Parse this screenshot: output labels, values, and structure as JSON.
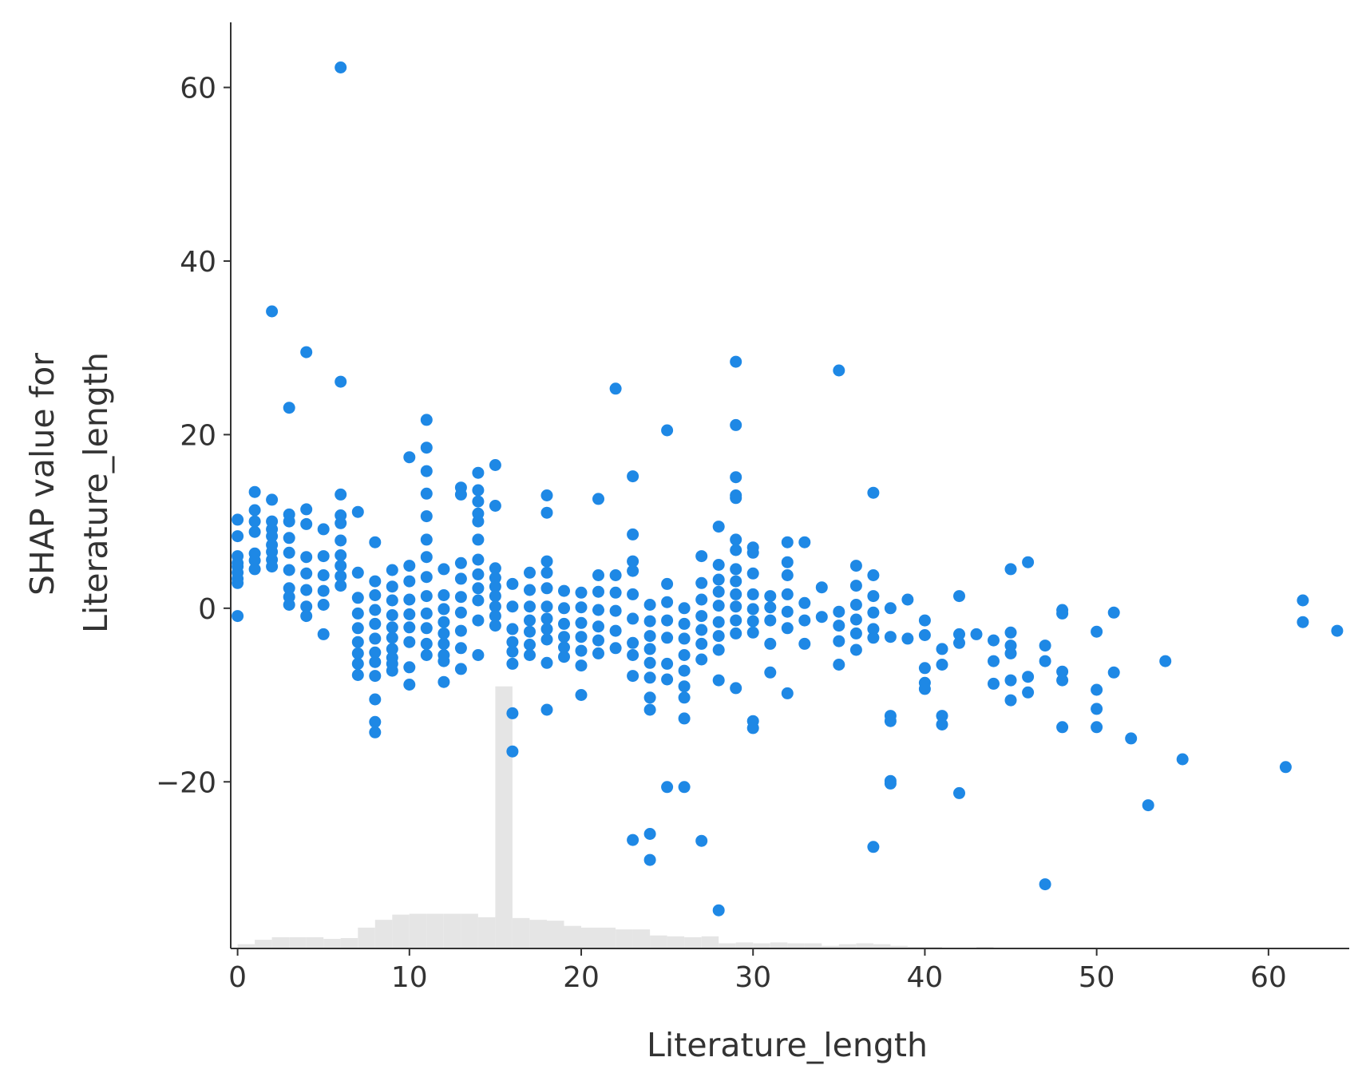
{
  "chart_data": {
    "type": "scatter",
    "xlabel": "Literature_length",
    "ylabel_lines": [
      "SHAP value for",
      "Literature_length"
    ],
    "xlim": [
      -0.4,
      64.7
    ],
    "ylim": [
      -39.2,
      67.5
    ],
    "x_ticks": [
      0,
      10,
      20,
      30,
      40,
      50,
      60
    ],
    "y_ticks": [
      -20,
      0,
      20,
      40,
      60
    ],
    "x_tick_labels": [
      "0",
      "10",
      "20",
      "30",
      "40",
      "50",
      "60"
    ],
    "y_tick_labels": [
      "−20",
      "0",
      "20",
      "40",
      "60"
    ],
    "grid": false,
    "point_color": "#1E88E5",
    "histogram_color": "#E5E5E5",
    "axis_color": "#333333",
    "histogram": {
      "bin_edges": [
        0,
        1,
        2,
        3,
        4,
        5,
        6,
        7,
        8,
        9,
        10,
        11,
        12,
        13,
        14,
        15,
        16,
        17,
        18,
        19,
        20,
        21,
        22,
        23,
        24,
        25,
        26,
        27,
        28,
        29,
        30,
        31,
        32,
        33,
        34,
        35,
        36,
        37,
        38,
        39,
        40,
        41,
        42,
        43,
        44,
        45,
        46,
        47,
        48,
        49,
        50
      ],
      "heights": [
        -38.7,
        -38.2,
        -37.9,
        -37.9,
        -37.9,
        -38.1,
        -38.0,
        -36.8,
        -35.9,
        -35.3,
        -35.2,
        -35.2,
        -35.2,
        -35.2,
        -35.6,
        -9.0,
        -35.7,
        -35.9,
        -36.0,
        -36.6,
        -36.8,
        -36.8,
        -37.0,
        -37.0,
        -37.7,
        -37.8,
        -37.9,
        -37.8,
        -38.6,
        -38.5,
        -38.6,
        -38.5,
        -38.6,
        -38.6,
        -38.9,
        -38.7,
        -38.6,
        -38.7,
        -38.9,
        -39.0,
        -39.0,
        -39.1,
        -39.1,
        -39.0,
        -39.1,
        -39.1,
        -39.1,
        -39.1,
        -39.1,
        -39.1
      ]
    },
    "points": {
      "x": [
        0,
        0,
        0,
        0,
        0,
        0,
        0,
        0,
        0,
        1,
        1,
        1,
        1,
        1,
        1,
        1,
        2,
        2,
        2,
        2,
        2,
        2,
        2,
        2,
        2,
        3,
        3,
        3,
        3,
        3,
        3,
        3,
        3,
        3,
        4,
        4,
        4,
        4,
        4,
        4,
        4,
        4,
        5,
        5,
        5,
        5,
        5,
        5,
        6,
        6,
        6,
        6,
        6,
        6,
        6,
        6,
        6,
        6,
        7,
        7,
        7,
        7,
        7,
        7,
        7,
        7,
        7,
        8,
        8,
        8,
        8,
        8,
        8,
        8,
        8,
        8,
        8,
        8,
        8,
        9,
        9,
        9,
        9,
        9,
        9,
        9,
        9,
        9,
        9,
        10,
        10,
        10,
        10,
        10,
        10,
        10,
        10,
        10,
        11,
        11,
        11,
        11,
        11,
        11,
        11,
        11,
        11,
        11,
        11,
        11,
        11,
        12,
        12,
        12,
        12,
        12,
        12,
        12,
        12,
        12,
        13,
        13,
        13,
        13,
        13,
        13,
        13,
        13,
        13,
        14,
        14,
        14,
        14,
        14,
        14,
        14,
        14,
        14,
        14,
        14,
        14,
        15,
        15,
        15,
        15,
        15,
        15,
        15,
        15,
        15,
        16,
        16,
        16,
        16,
        16,
        16,
        16,
        16,
        17,
        17,
        17,
        17,
        17,
        17,
        17,
        18,
        18,
        18,
        18,
        18,
        18,
        18,
        18,
        18,
        18,
        18,
        19,
        19,
        19,
        19,
        19,
        19,
        20,
        20,
        20,
        20,
        20,
        20,
        20,
        21,
        21,
        21,
        21,
        21,
        21,
        21,
        22,
        22,
        22,
        22,
        22,
        22,
        23,
        23,
        23,
        23,
        23,
        23,
        23,
        23,
        23,
        23,
        24,
        24,
        24,
        24,
        24,
        24,
        24,
        24,
        24,
        24,
        25,
        25,
        25,
        25,
        25,
        25,
        25,
        25,
        26,
        26,
        26,
        26,
        26,
        26,
        26,
        26,
        26,
        27,
        27,
        27,
        27,
        27,
        27,
        27,
        27,
        28,
        28,
        28,
        28,
        28,
        28,
        28,
        28,
        28,
        28,
        29,
        29,
        29,
        29,
        29,
        29,
        29,
        29,
        29,
        29,
        29,
        29,
        29,
        29,
        30,
        30,
        30,
        30,
        30,
        30,
        30,
        30,
        30,
        31,
        31,
        31,
        31,
        31,
        32,
        32,
        32,
        32,
        32,
        32,
        32,
        33,
        33,
        33,
        33,
        34,
        34,
        35,
        35,
        35,
        35,
        35,
        36,
        36,
        36,
        36,
        36,
        36,
        37,
        37,
        37,
        37,
        37,
        37,
        37,
        38,
        38,
        38,
        38,
        38,
        38,
        39,
        39,
        40,
        40,
        40,
        40,
        40,
        41,
        41,
        41,
        41,
        42,
        42,
        42,
        42,
        43,
        44,
        44,
        44,
        45,
        45,
        45,
        45,
        45,
        45,
        46,
        46,
        46,
        47,
        47,
        47,
        48,
        48,
        48,
        48,
        48,
        50,
        50,
        50,
        50,
        51,
        51,
        52,
        53,
        54,
        55,
        61,
        62,
        62,
        64
      ],
      "y": [
        10.2,
        8.3,
        6.0,
        5.2,
        4.8,
        4.1,
        3.4,
        2.9,
        -0.9,
        13.4,
        11.3,
        10.0,
        8.8,
        6.3,
        5.5,
        4.5,
        12.5,
        10.0,
        9.1,
        8.3,
        7.3,
        6.5,
        5.6,
        4.8,
        34.2,
        23.1,
        10.8,
        10.0,
        8.1,
        6.4,
        4.4,
        2.3,
        1.3,
        0.4,
        29.5,
        11.4,
        9.7,
        5.9,
        4.0,
        2.1,
        0.2,
        -0.9,
        9.1,
        6.0,
        3.8,
        2.0,
        0.4,
        -3.0,
        62.3,
        26.1,
        13.1,
        10.7,
        9.8,
        7.8,
        6.1,
        4.9,
        3.7,
        2.6,
        11.1,
        4.1,
        1.2,
        -0.6,
        -2.3,
        -3.9,
        -5.2,
        -6.4,
        -7.7,
        7.6,
        3.1,
        1.5,
        -0.2,
        -1.8,
        -3.5,
        -5.1,
        -6.2,
        -7.8,
        -10.5,
        -13.1,
        -14.3,
        4.4,
        2.5,
        0.9,
        -0.8,
        -2.2,
        -3.4,
        -4.7,
        -5.7,
        -6.4,
        -7.2,
        17.4,
        4.9,
        3.1,
        1.0,
        -0.7,
        -2.2,
        -3.9,
        -6.8,
        -8.8,
        21.7,
        18.5,
        15.8,
        13.2,
        10.6,
        7.9,
        5.9,
        3.6,
        1.4,
        -0.6,
        -2.3,
        -4.1,
        -5.4,
        4.5,
        1.5,
        -0.1,
        -1.6,
        -2.9,
        -4.1,
        -5.4,
        -6.1,
        -8.5,
        13.9,
        13.1,
        5.2,
        3.4,
        1.3,
        -0.5,
        -2.6,
        -4.6,
        -7.0,
        15.6,
        13.6,
        12.3,
        10.9,
        10.0,
        7.9,
        5.6,
        3.9,
        2.3,
        0.9,
        -1.4,
        -5.4,
        16.5,
        11.8,
        4.6,
        3.5,
        2.5,
        1.4,
        0.2,
        -0.9,
        -2.0,
        2.8,
        0.2,
        -2.4,
        -3.9,
        -5.0,
        -6.4,
        -12.1,
        -16.5,
        4.1,
        2.1,
        0.2,
        -1.4,
        -2.7,
        -4.2,
        -5.4,
        13.0,
        11.0,
        5.4,
        4.1,
        2.3,
        0.2,
        -1.2,
        -2.4,
        -3.6,
        -6.3,
        -11.7,
        2.0,
        0.0,
        -1.8,
        -3.3,
        -4.5,
        -5.6,
        1.8,
        0.1,
        -1.7,
        -3.3,
        -4.9,
        -6.6,
        -10.0,
        12.6,
        3.8,
        1.9,
        -0.2,
        -2.1,
        -3.7,
        -5.2,
        25.3,
        3.8,
        1.8,
        -0.3,
        -2.6,
        -4.6,
        15.2,
        8.5,
        5.4,
        4.3,
        1.6,
        -1.2,
        -4.0,
        -5.4,
        -7.8,
        -26.7,
        0.4,
        -1.5,
        -3.2,
        -4.7,
        -6.3,
        -8.0,
        -10.3,
        -11.7,
        -26.0,
        -29.0,
        20.5,
        2.8,
        0.7,
        -1.4,
        -3.4,
        -6.4,
        -8.2,
        -20.6,
        0.0,
        -1.8,
        -3.5,
        -5.4,
        -7.2,
        -9.0,
        -10.3,
        -12.7,
        -20.6,
        6.0,
        2.9,
        1.0,
        -0.9,
        -2.5,
        -4.1,
        -5.9,
        -26.8,
        9.4,
        5.0,
        3.3,
        1.9,
        0.3,
        -1.6,
        -3.2,
        -4.8,
        -8.3,
        -34.8,
        28.4,
        21.1,
        15.1,
        12.7,
        7.9,
        6.7,
        4.5,
        3.1,
        1.6,
        0.2,
        -1.4,
        -2.9,
        -9.2,
        13.0,
        7.0,
        6.4,
        4.0,
        1.6,
        -0.1,
        -1.5,
        -2.8,
        -13.0,
        -13.8,
        1.4,
        0.1,
        -1.4,
        -4.1,
        -7.4,
        7.6,
        5.3,
        3.8,
        1.6,
        -0.4,
        -2.3,
        -9.8,
        7.6,
        0.6,
        -1.4,
        -4.1,
        2.4,
        -1.0,
        27.4,
        -0.4,
        -2.0,
        -3.8,
        -6.5,
        4.9,
        2.6,
        0.4,
        -1.3,
        -2.9,
        -4.8,
        13.3,
        3.8,
        1.4,
        -0.5,
        -2.4,
        -3.4,
        -27.5,
        0.0,
        -3.3,
        -12.4,
        -13.0,
        -19.9,
        -20.2,
        1.0,
        -3.5,
        -1.4,
        -3.1,
        -6.9,
        -8.6,
        -9.3,
        -4.7,
        -6.5,
        -12.4,
        -13.4,
        1.4,
        -3.0,
        -4.0,
        -21.3,
        -3.0,
        -3.7,
        -6.1,
        -8.7,
        4.5,
        -2.8,
        -4.3,
        -5.2,
        -8.3,
        -10.6,
        5.3,
        -7.9,
        -9.7,
        -4.3,
        -6.1,
        -31.8,
        -0.2,
        -0.6,
        -7.3,
        -8.3,
        -13.7,
        -2.7,
        -9.4,
        -11.6,
        -13.7,
        -0.5,
        -7.4,
        -15.0,
        -22.7,
        -6.1,
        -17.4,
        -18.3,
        0.9,
        -1.6,
        -2.6
      ]
    }
  }
}
